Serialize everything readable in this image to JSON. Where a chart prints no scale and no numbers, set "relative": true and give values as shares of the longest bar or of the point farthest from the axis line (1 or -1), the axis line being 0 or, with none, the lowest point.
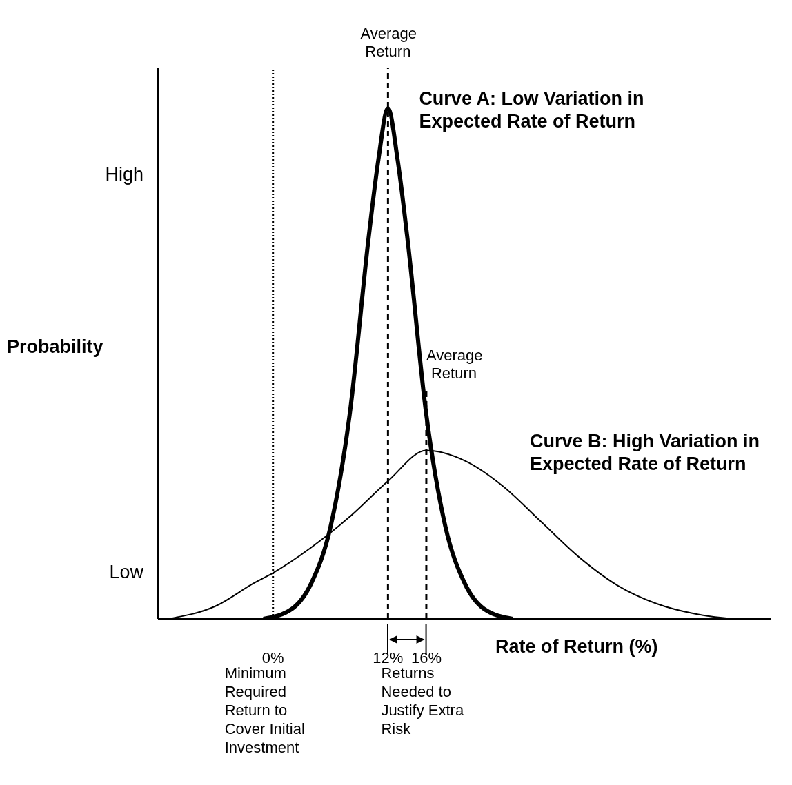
{
  "chart_data": {
    "type": "line",
    "relative": true,
    "xlabel": "Rate of Return (%)",
    "ylabel": "Probability",
    "marker": "none",
    "xlim": [
      -12,
      52
    ],
    "xticks": [
      {
        "value": 0,
        "label": "0%"
      },
      {
        "value": 12,
        "label": "12%"
      },
      {
        "value": 16,
        "label": "16%"
      }
    ],
    "series": [
      {
        "name": "Curve A: Low Variation in Expected Rate of Return",
        "color": "#000000",
        "x": [
          -1,
          2,
          4,
          6,
          8,
          10,
          11,
          12,
          13,
          14,
          16,
          18,
          20,
          22,
          25
        ],
        "values": [
          0,
          0.02,
          0.07,
          0.18,
          0.4,
          0.75,
          0.9,
          1,
          0.9,
          0.75,
          0.4,
          0.18,
          0.07,
          0.02,
          0
        ]
      },
      {
        "name": "Curve B: High Variation in Expected Rate of Return",
        "color": "#000000",
        "x": [
          -11,
          -6,
          -2,
          0,
          4,
          8,
          12,
          16,
          20,
          24,
          28,
          32,
          36,
          40,
          44,
          48
        ],
        "values": [
          0,
          0.025,
          0.07,
          0.09,
          0.14,
          0.2,
          0.27,
          0.33,
          0.31,
          0.26,
          0.19,
          0.12,
          0.065,
          0.03,
          0.01,
          0
        ]
      }
    ],
    "ref_lines": [
      {
        "axis": "x",
        "value": 0,
        "line_style": "dotted",
        "color": "#000000"
      },
      {
        "axis": "x",
        "value": 12,
        "label": "Average Return",
        "line_style": "dashed",
        "color": "#000000"
      },
      {
        "axis": "x",
        "value": 16,
        "label": "Average Return",
        "line_style": "dashed",
        "color": "#000000"
      }
    ],
    "annotations": [
      "High",
      "Low",
      "Minimum Required Return to Cover Initial Investment",
      "Returns Needed to Justify Extra Risk"
    ]
  }
}
